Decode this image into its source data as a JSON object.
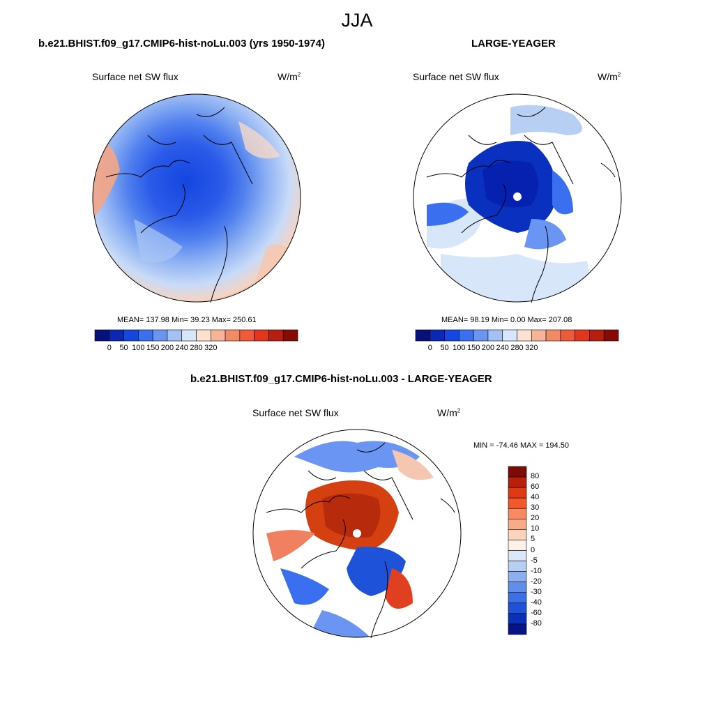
{
  "figure": {
    "season": "JJA"
  },
  "panels": {
    "left": {
      "title": "b.e21.BHIST.f09_g17.CMIP6-hist-noLu.003 (yrs 1950-1974)",
      "variable": "Surface net SW flux",
      "units_base": "W/m",
      "units_exp": "2",
      "stats": "MEAN= 137.98  Min=  39.23  Max= 250.61"
    },
    "right": {
      "title": "LARGE-YEAGER",
      "variable": "Surface net SW flux",
      "units_base": "W/m",
      "units_exp": "2",
      "stats": "MEAN=  98.19  Min=   0.00  Max= 207.08"
    },
    "diff": {
      "title": "b.e21.BHIST.f09_g17.CMIP6-hist-noLu.003 - LARGE-YEAGER",
      "variable": "Surface net SW flux",
      "units_base": "W/m",
      "units_exp": "2",
      "stats": "MIN = -74.46 MAX = 194.50"
    }
  },
  "colorbars": {
    "abs": {
      "tick_labels": [
        "0",
        "50",
        "100",
        "150",
        "200",
        "240",
        "280",
        "320"
      ],
      "colors": [
        "#08107a",
        "#0a28b4",
        "#1446e0",
        "#3a6ff0",
        "#6a95f2",
        "#a4c1f6",
        "#d8e6fa",
        "#fde2d2",
        "#f7b496",
        "#f38a66",
        "#ee5a3a",
        "#e0361e",
        "#b81e10",
        "#880a06"
      ]
    },
    "diff": {
      "tick_labels": [
        "80",
        "60",
        "40",
        "30",
        "20",
        "10",
        "5",
        "0",
        "-5",
        "-10",
        "-20",
        "-30",
        "-40",
        "-60",
        "-80"
      ],
      "colors": [
        "#7d0a06",
        "#b8200c",
        "#de3a14",
        "#f2582a",
        "#f78a60",
        "#f9ab88",
        "#fcd3bd",
        "#fdf0e6",
        "#dbe8f8",
        "#b8cff4",
        "#8daff0",
        "#5f8eec",
        "#3a6fe6",
        "#1e52d8",
        "#0a30b8",
        "#06148a"
      ]
    }
  }
}
